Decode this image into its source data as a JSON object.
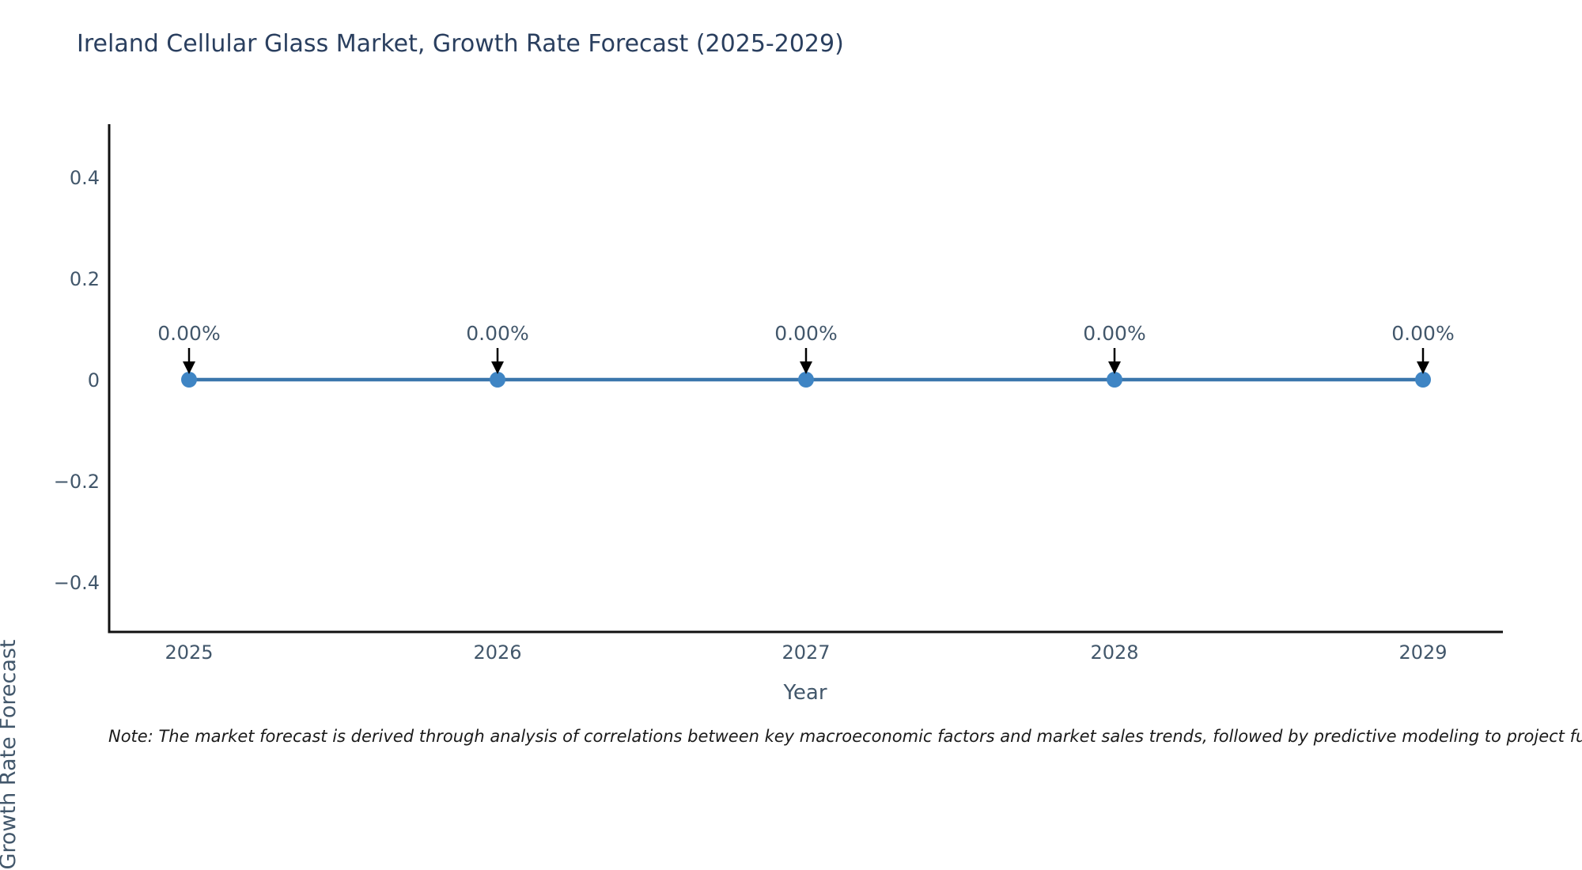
{
  "page": {
    "background": "#ffffff"
  },
  "chart_data": {
    "type": "line",
    "title": "Ireland Cellular Glass Market, Growth Rate Forecast (2025-2029)",
    "xlabel": "Year",
    "ylabel": "Growth Rate Forecast",
    "categories": [
      "2025",
      "2026",
      "2027",
      "2028",
      "2029"
    ],
    "series": [
      {
        "name": "Growth Rate Forecast",
        "values": [
          0,
          0,
          0,
          0,
          0
        ]
      }
    ],
    "values": [
      0,
      0,
      0,
      0,
      0
    ],
    "point_labels": [
      "0.00%",
      "0.00%",
      "0.00%",
      "0.00%",
      "0.00%"
    ],
    "ylim": [
      -0.5,
      0.5
    ],
    "yticks": [
      0.4,
      0.2,
      0,
      -0.2,
      -0.4
    ],
    "ytick_labels": [
      "0.4",
      "0.2",
      "0",
      "−0.2",
      "−0.4"
    ],
    "grid": false,
    "legend": "none",
    "colors": {
      "line": "#3a76ac",
      "marker": "#3f85c4",
      "axis": "#111111",
      "tick_text": "#42576b",
      "title_text": "#2a3f5f",
      "annotation_text": "#42576b",
      "arrow": "#000000"
    }
  },
  "note": {
    "text": "Note: The market forecast is derived through analysis of correlations between key macroeconomic factors and market sales trends, followed by predictive modeling to project future sales."
  }
}
